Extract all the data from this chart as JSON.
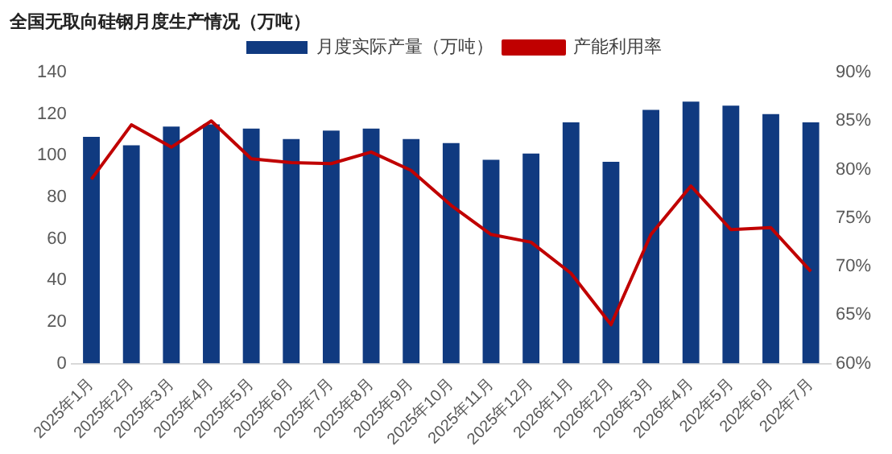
{
  "chart_data": {
    "type": "bar",
    "title": "全国无取向硅钢月度生产情况（万吨）",
    "categories": [
      "2025年1月",
      "2025年2月",
      "2025年3月",
      "2025年4月",
      "2025年5月",
      "2025年6月",
      "2025年7月",
      "2025年8月",
      "2025年9月",
      "2025年10月",
      "2025年11月",
      "2025年12月",
      "2026年1月",
      "2026年2月",
      "2026年3月",
      "2026年4月",
      "202年5月",
      "202年6月",
      "202年7月"
    ],
    "series": [
      {
        "name": "月度实际产量（万吨）",
        "color": "#103a80",
        "values": [
          109,
          105,
          114,
          115,
          113,
          108,
          112,
          113,
          108,
          106,
          98,
          101,
          116,
          97,
          122,
          126,
          124,
          120,
          116
        ]
      },
      {
        "name": "产能利用率",
        "type": "line",
        "axis": "y2",
        "color": "#c00000",
        "values": [
          79.0,
          84.6,
          82.3,
          85.0,
          81.1,
          80.7,
          80.6,
          81.8,
          79.9,
          76.3,
          73.3,
          72.5,
          69.3,
          64.0,
          73.3,
          78.3,
          73.8,
          74.0,
          69.5
        ]
      }
    ],
    "ylim": [
      0,
      140
    ],
    "yticks": [
      0,
      20,
      40,
      60,
      80,
      100,
      120,
      140
    ],
    "y2lim": [
      60,
      90
    ],
    "y2ticks": [
      {
        "value": 60,
        "label": "60%"
      },
      {
        "value": 65,
        "label": "65%"
      },
      {
        "value": 70,
        "label": "70%"
      },
      {
        "value": 75,
        "label": "75%"
      },
      {
        "value": 80,
        "label": "80%"
      },
      {
        "value": 85,
        "label": "85%"
      },
      {
        "value": 90,
        "label": "90%"
      }
    ],
    "grid": false,
    "legend": "top",
    "marker": "none",
    "line_style": "solid"
  }
}
